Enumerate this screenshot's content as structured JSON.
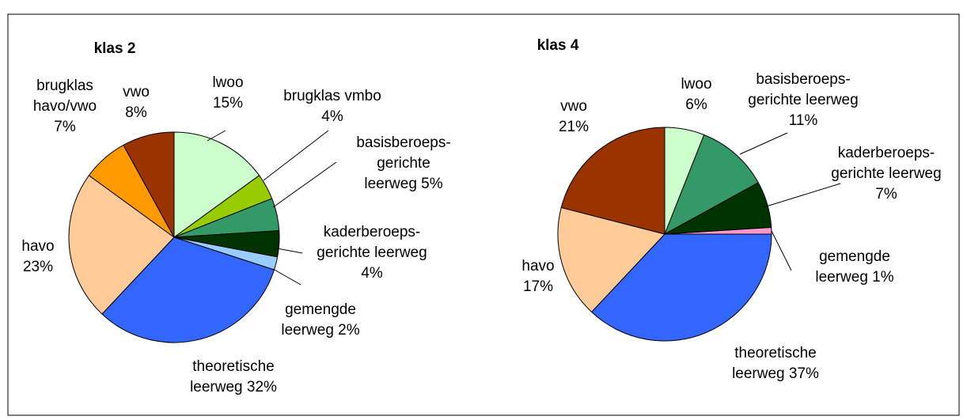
{
  "chart_data": [
    {
      "type": "pie",
      "title": "klas 2",
      "categories": [
        "lwoo",
        "brugklas vmbo",
        "basisberoeps-gerichte leerweg",
        "kaderberoeps-gerichte leerweg",
        "gemengde leerweg",
        "theoretische leerweg",
        "havo",
        "brugklas havo/vwo",
        "vwo"
      ],
      "values": [
        15,
        4,
        5,
        4,
        2,
        32,
        23,
        7,
        8
      ],
      "value_labels": [
        "15%",
        "4%",
        "5%",
        "4%",
        "2%",
        "32%",
        "23%",
        "7%",
        "8%"
      ],
      "colors": [
        "#ccffcc",
        "#99cc00",
        "#339966",
        "#003300",
        "#99ccff",
        "#3366ff",
        "#ffcc99",
        "#ff9900",
        "#993300"
      ]
    },
    {
      "type": "pie",
      "title": "klas 4",
      "categories": [
        "lwoo",
        "basisberoeps-gerichte leerweg",
        "kaderberoeps-gerichte leerweg",
        "gemengde leerweg",
        "theoretische leerweg",
        "havo",
        "vwo"
      ],
      "values": [
        6,
        11,
        7,
        1,
        37,
        17,
        21
      ],
      "value_labels": [
        "6%",
        "11%",
        "7%",
        "1%",
        "37%",
        "17%",
        "21%"
      ],
      "colors": [
        "#ccffcc",
        "#339966",
        "#003300",
        "#ff99cc",
        "#3366ff",
        "#ffcc99",
        "#993300"
      ]
    }
  ]
}
